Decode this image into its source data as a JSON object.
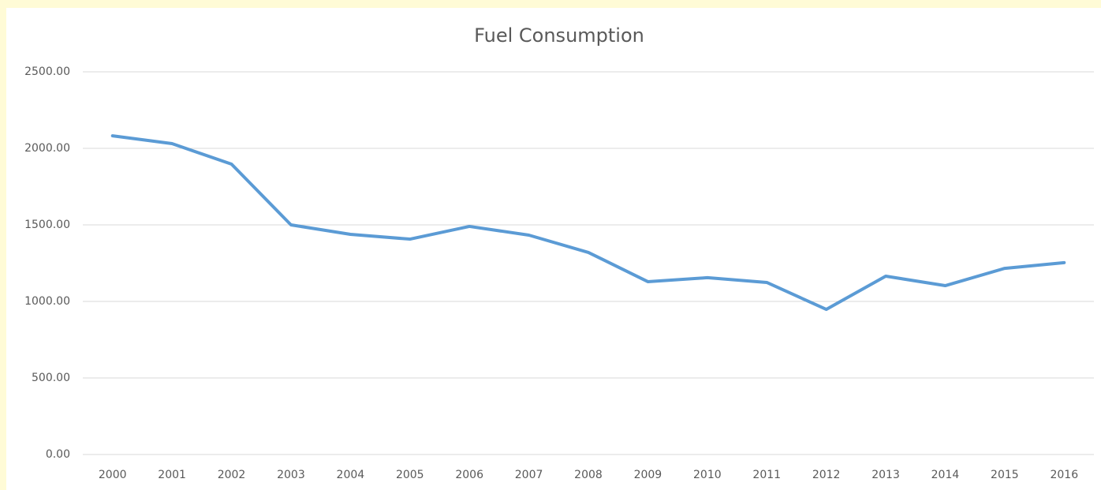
{
  "chart_data": {
    "type": "line",
    "title": "Fuel Consumption",
    "categories": [
      "2000",
      "2001",
      "2002",
      "2003",
      "2004",
      "2005",
      "2006",
      "2007",
      "2008",
      "2009",
      "2010",
      "2011",
      "2012",
      "2013",
      "2014",
      "2015",
      "2016"
    ],
    "series": [
      {
        "color": "#5b9bd5",
        "values": [
          2082,
          2031,
          1897,
          1500,
          1438,
          1407,
          1490,
          1433,
          1320,
          1129,
          1155,
          1124,
          948,
          1165,
          1103,
          1216,
          1253
        ]
      }
    ],
    "ylim": [
      0,
      2500
    ],
    "yticks": [
      {
        "value": 0,
        "label": "0.00"
      },
      {
        "value": 500,
        "label": "500.00"
      },
      {
        "value": 1000,
        "label": "1000.00"
      },
      {
        "value": 1500,
        "label": "1500.00"
      },
      {
        "value": 2000,
        "label": "2000.00"
      },
      {
        "value": 2500,
        "label": "2500.00"
      }
    ],
    "grid": true
  }
}
